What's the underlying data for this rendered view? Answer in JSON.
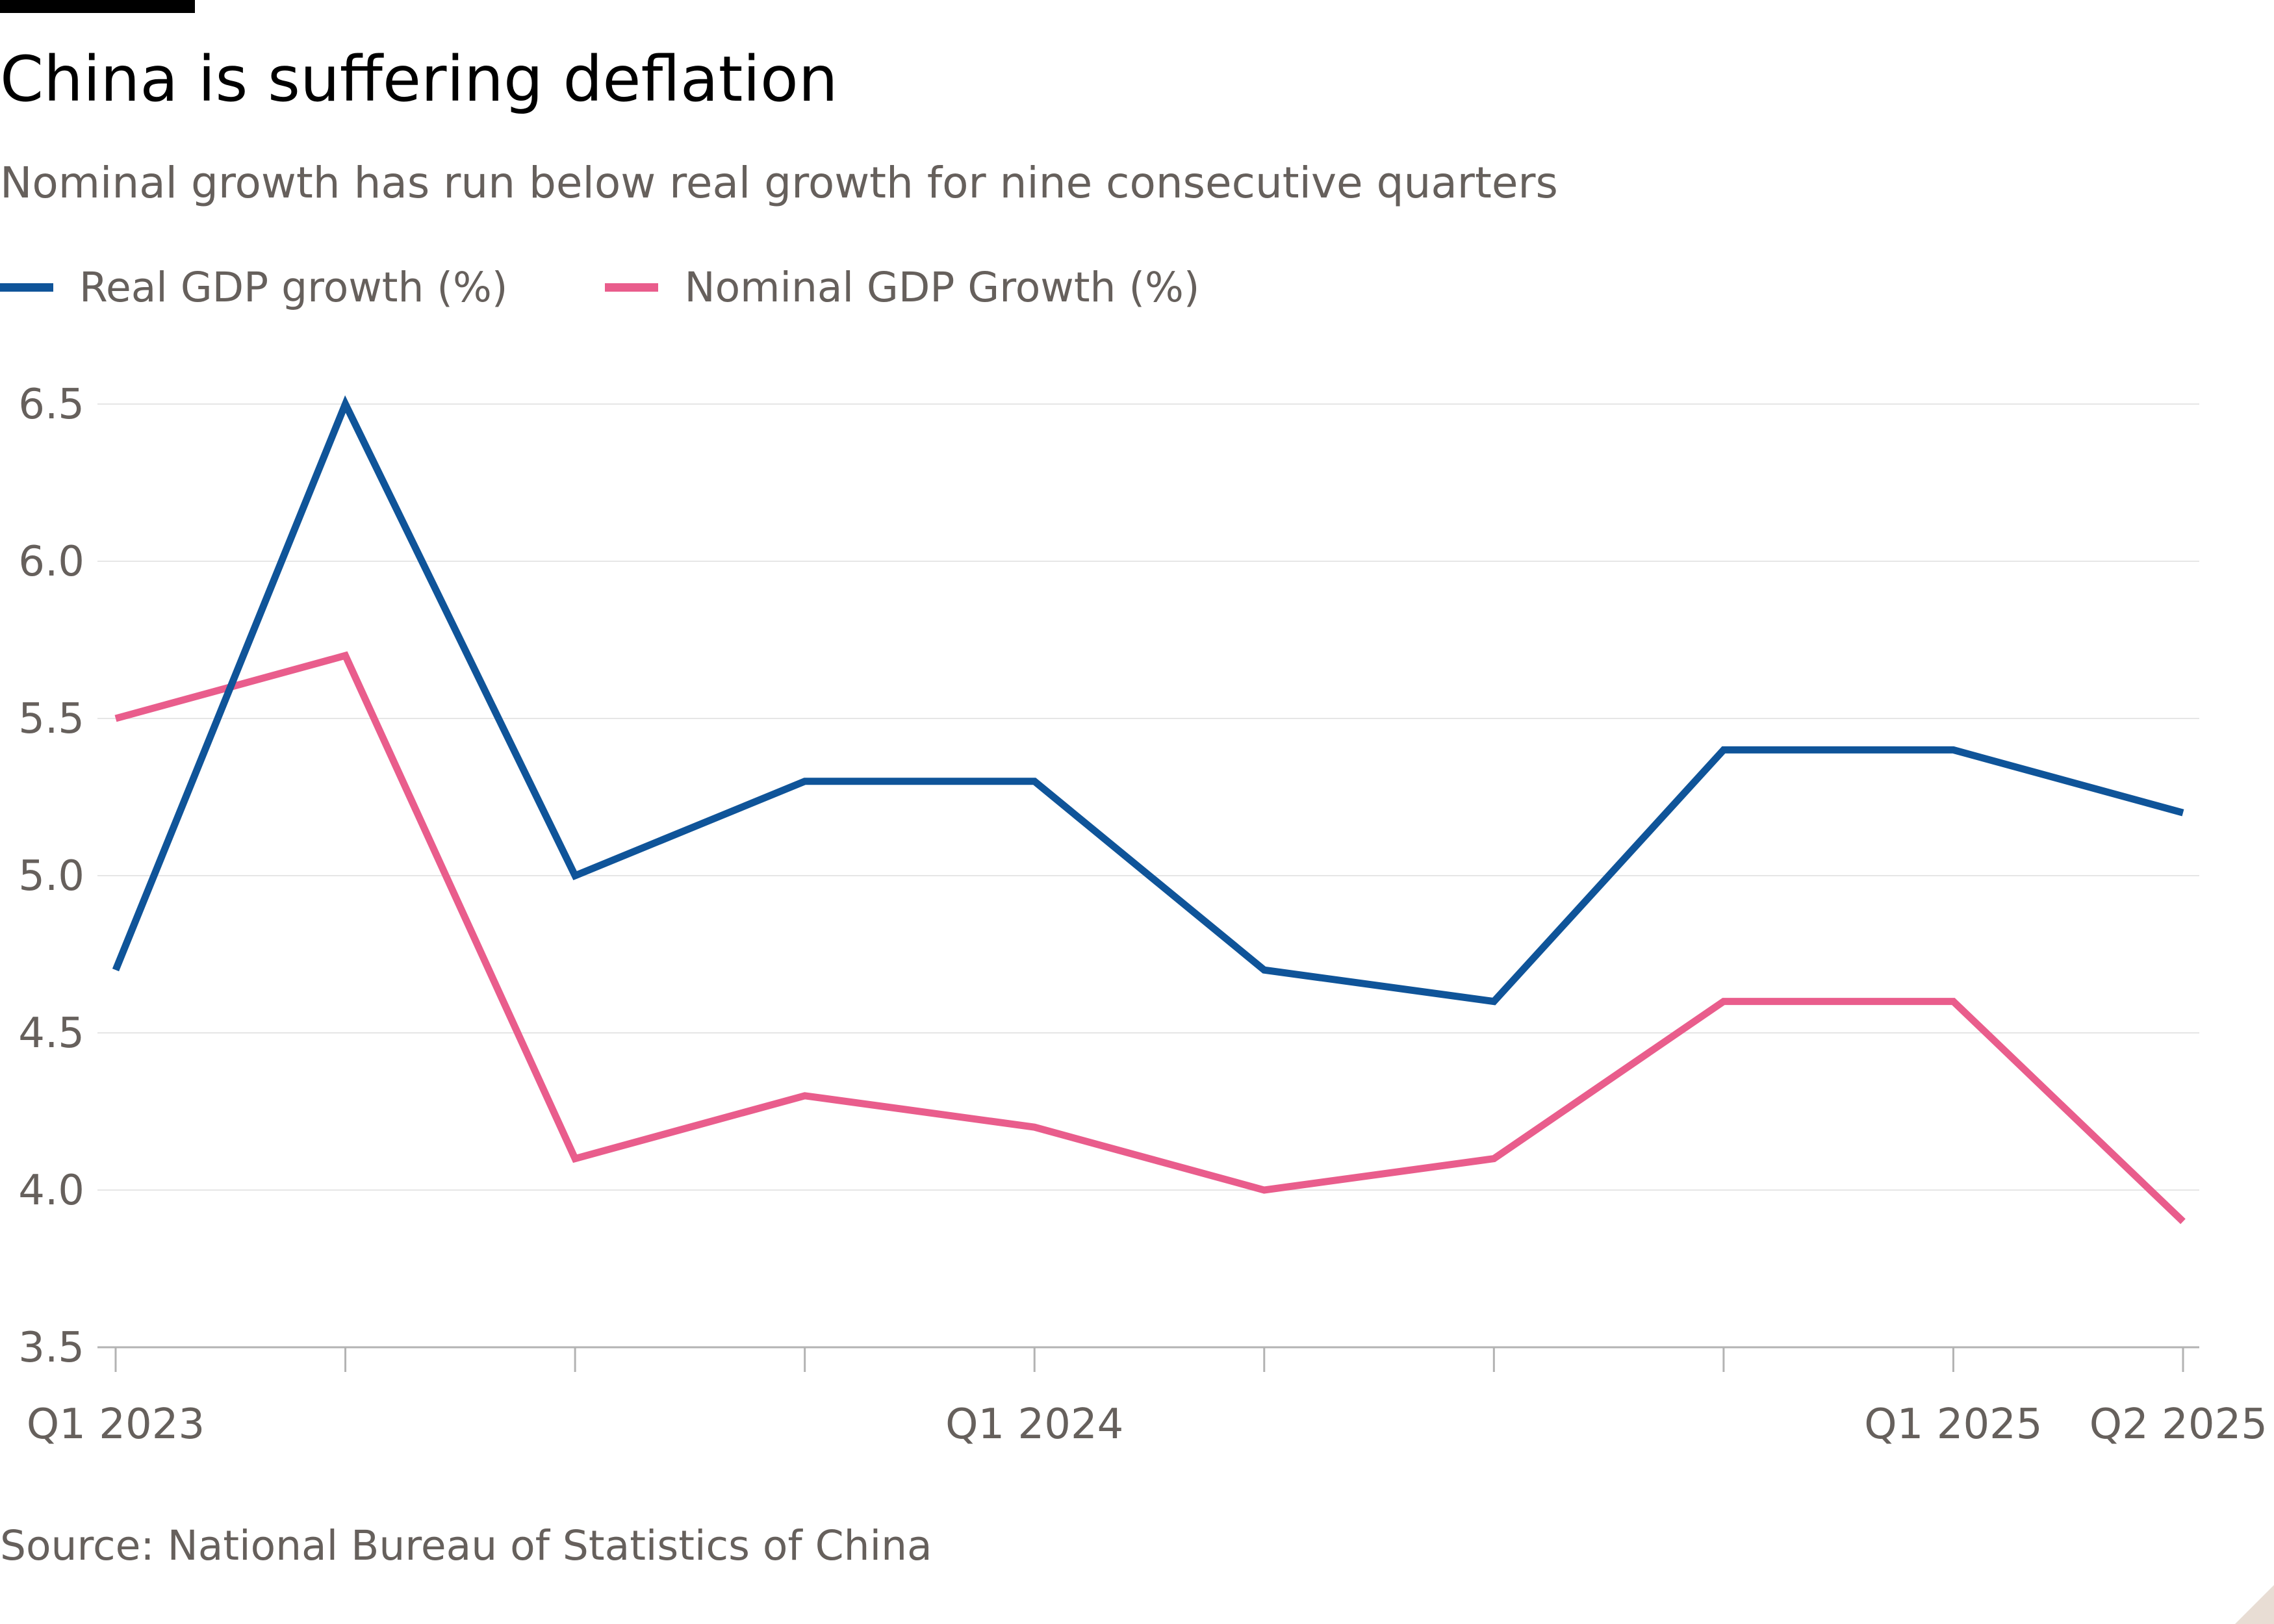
{
  "title": "China is suffering deflation",
  "subtitle": "Nominal growth has run below real growth for nine consecutive quarters",
  "source": "Source: National Bureau of Statistics of China",
  "colors": {
    "real": "#0f5499",
    "nominal": "#e95d8c",
    "text_muted": "#66605c",
    "grid": "#e6e6e6",
    "axis": "#b3b3b3"
  },
  "chart_data": {
    "type": "line",
    "x": [
      "Q1 2023",
      "Q2 2023",
      "Q3 2023",
      "Q4 2023",
      "Q1 2024",
      "Q2 2024",
      "Q3 2024",
      "Q4 2024",
      "Q1 2025",
      "Q2 2025"
    ],
    "x_tick_labels": [
      "Q1 2023",
      "",
      "",
      "",
      "Q1 2024",
      "",
      "",
      "",
      "Q1 2025",
      "Q2 2025"
    ],
    "series": [
      {
        "name": "Real GDP growth (%)",
        "color": "#0f5499",
        "values": [
          4.7,
          6.5,
          5.0,
          5.3,
          5.3,
          4.7,
          4.6,
          5.4,
          5.4,
          5.2
        ]
      },
      {
        "name": "Nominal GDP Growth (%)",
        "color": "#e95d8c",
        "values": [
          5.5,
          5.7,
          4.1,
          4.3,
          4.2,
          4.0,
          4.1,
          4.6,
          4.6,
          3.9
        ]
      }
    ],
    "ylim": [
      3.5,
      6.5
    ],
    "yticks": [
      "3.5",
      "4.0",
      "4.5",
      "5.0",
      "5.5",
      "6.0",
      "6.5"
    ],
    "grid": true,
    "legend_position": "top-left"
  }
}
